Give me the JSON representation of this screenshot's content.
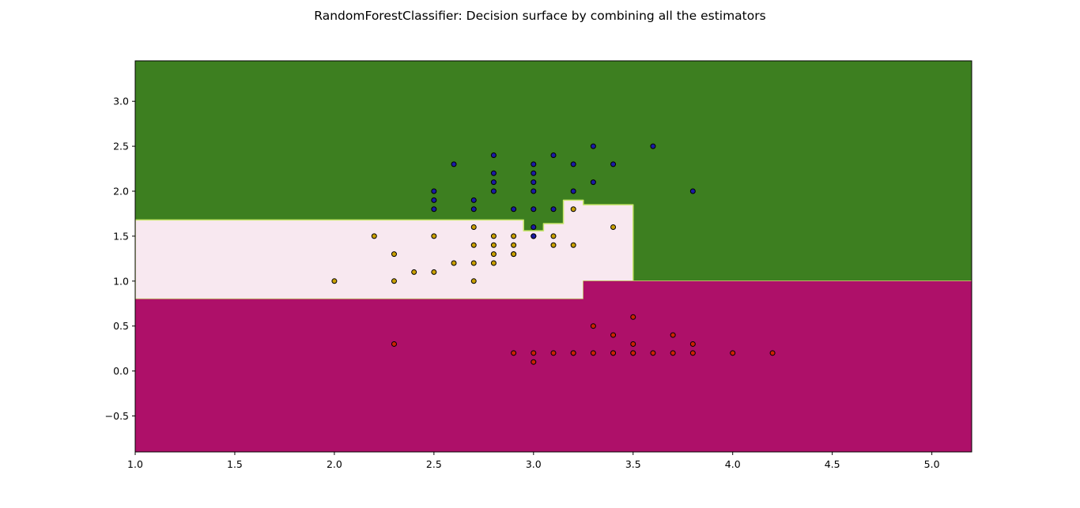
{
  "chart_data": {
    "type": "scatter",
    "title": "RandomForestClassifier: Decision surface by combining all the estimators",
    "xlabel": "",
    "ylabel": "",
    "xlim": [
      1.0,
      5.2
    ],
    "ylim": [
      -0.9,
      3.45
    ],
    "x_ticks": [
      1.0,
      1.5,
      2.0,
      2.5,
      3.0,
      3.5,
      4.0,
      4.5,
      5.0
    ],
    "y_ticks": [
      -0.5,
      0.0,
      0.5,
      1.0,
      1.5,
      2.0,
      2.5,
      3.0
    ],
    "x_tick_labels": [
      "1.0",
      "1.5",
      "2.0",
      "2.5",
      "3.0",
      "3.5",
      "4.0",
      "4.5",
      "5.0"
    ],
    "y_tick_labels": [
      "−0.5",
      "0.0",
      "0.5",
      "1.0",
      "1.5",
      "2.0",
      "2.5",
      "3.0"
    ],
    "grid": false,
    "regions": [
      {
        "class": 0,
        "color": "#ae1069",
        "boundary": [
          [
            1.0,
            0.8
          ],
          [
            3.25,
            0.8
          ],
          [
            3.25,
            1.0
          ],
          [
            5.2,
            1.0
          ]
        ]
      },
      {
        "class": 1,
        "color": "#f8e8f0",
        "boundary": [
          [
            1.0,
            1.68
          ],
          [
            2.95,
            1.68
          ],
          [
            2.95,
            1.56
          ],
          [
            3.05,
            1.56
          ],
          [
            3.05,
            1.64
          ],
          [
            3.15,
            1.64
          ],
          [
            3.15,
            1.9
          ],
          [
            3.25,
            1.9
          ],
          [
            3.25,
            1.85
          ],
          [
            3.5,
            1.85
          ],
          [
            3.5,
            1.0
          ]
        ]
      },
      {
        "class": 2,
        "color": "#3d7f20"
      }
    ],
    "series": [
      {
        "class": 0,
        "color": "#cc2200",
        "x": [
          3.5,
          3.7,
          3.3,
          3.4,
          3.5,
          3.8,
          2.3,
          2.9,
          3.0,
          3.0,
          3.1,
          3.2,
          3.2,
          3.3,
          3.4,
          3.4,
          3.5,
          3.5,
          3.6,
          3.7,
          3.8,
          4.0,
          4.2
        ],
        "y": [
          0.6,
          0.4,
          0.5,
          0.4,
          0.3,
          0.3,
          0.3,
          0.2,
          0.2,
          0.1,
          0.2,
          0.2,
          0.2,
          0.2,
          0.2,
          0.2,
          0.2,
          0.2,
          0.2,
          0.2,
          0.2,
          0.2,
          0.2
        ]
      },
      {
        "class": 1,
        "color": "#c9a000",
        "x": [
          2.0,
          2.2,
          2.3,
          2.3,
          2.4,
          2.5,
          2.5,
          2.6,
          2.7,
          2.7,
          2.7,
          2.7,
          2.8,
          2.8,
          2.8,
          2.8,
          2.9,
          2.9,
          2.9,
          2.9,
          3.0,
          3.0,
          3.1,
          3.1,
          3.2,
          3.2,
          3.4
        ],
        "y": [
          1.0,
          1.5,
          1.3,
          1.0,
          1.1,
          1.5,
          1.1,
          1.2,
          1.6,
          1.4,
          1.2,
          1.0,
          1.5,
          1.3,
          1.2,
          1.4,
          1.5,
          1.4,
          1.3,
          1.3,
          1.5,
          1.5,
          1.5,
          1.4,
          1.4,
          1.8,
          1.6
        ]
      },
      {
        "class": 2,
        "color": "#1a1aa6",
        "x": [
          2.5,
          2.5,
          2.5,
          2.6,
          2.7,
          2.7,
          2.8,
          2.8,
          2.8,
          2.8,
          2.9,
          3.0,
          3.0,
          3.0,
          3.0,
          3.0,
          3.0,
          3.0,
          3.1,
          3.1,
          3.2,
          3.2,
          3.3,
          3.3,
          3.4,
          3.6,
          3.8
        ],
        "y": [
          2.0,
          1.9,
          1.8,
          2.3,
          1.9,
          1.8,
          2.4,
          2.2,
          2.1,
          2.0,
          1.8,
          2.3,
          2.2,
          2.1,
          2.0,
          1.8,
          1.6,
          1.5,
          2.4,
          1.8,
          2.3,
          2.0,
          2.5,
          2.1,
          2.3,
          2.5,
          2.0
        ]
      }
    ]
  }
}
